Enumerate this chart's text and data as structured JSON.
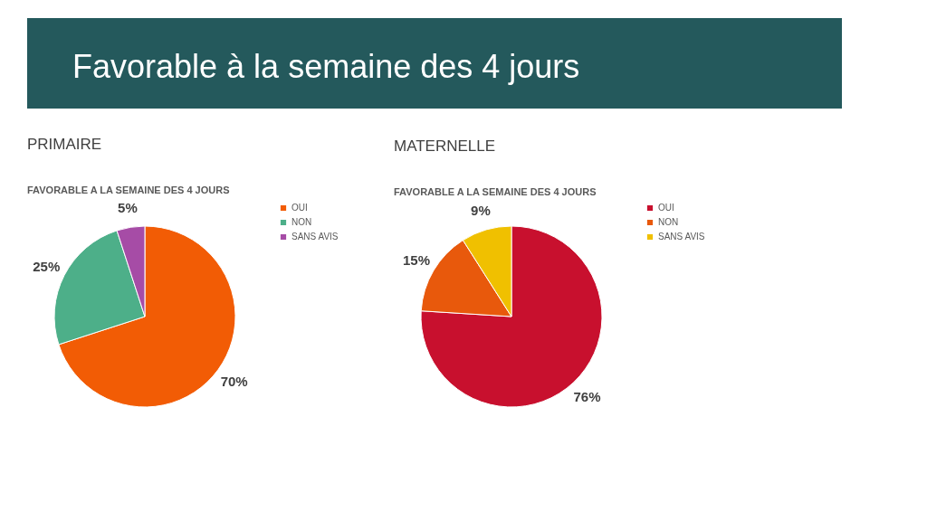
{
  "chart_data": [
    {
      "type": "other",
      "title": "Favorable à la semaine des 4 jours"
    },
    {
      "type": "pie",
      "subtitle": "PRIMAIRE",
      "title": "FAVORABLE A LA SEMAINE DES 4 JOURS",
      "categories": [
        "OUI",
        "NON",
        "SANS AVIS"
      ],
      "values": [
        70,
        25,
        5
      ],
      "colors": [
        "#f25c05",
        "#4daf89",
        "#a64ca6"
      ],
      "value_labels": [
        "70%",
        "25%",
        "5%"
      ],
      "legend": "right"
    },
    {
      "type": "pie",
      "subtitle": "MATERNELLE",
      "title": "FAVORABLE A LA SEMAINE DES 4 JOURS",
      "categories": [
        "OUI",
        "NON",
        "SANS AVIS"
      ],
      "values": [
        76,
        15,
        9
      ],
      "colors": [
        "#c8102e",
        "#e8590c",
        "#f0c000"
      ],
      "value_labels": [
        "76%",
        "15%",
        "9%"
      ],
      "legend": "right"
    }
  ]
}
